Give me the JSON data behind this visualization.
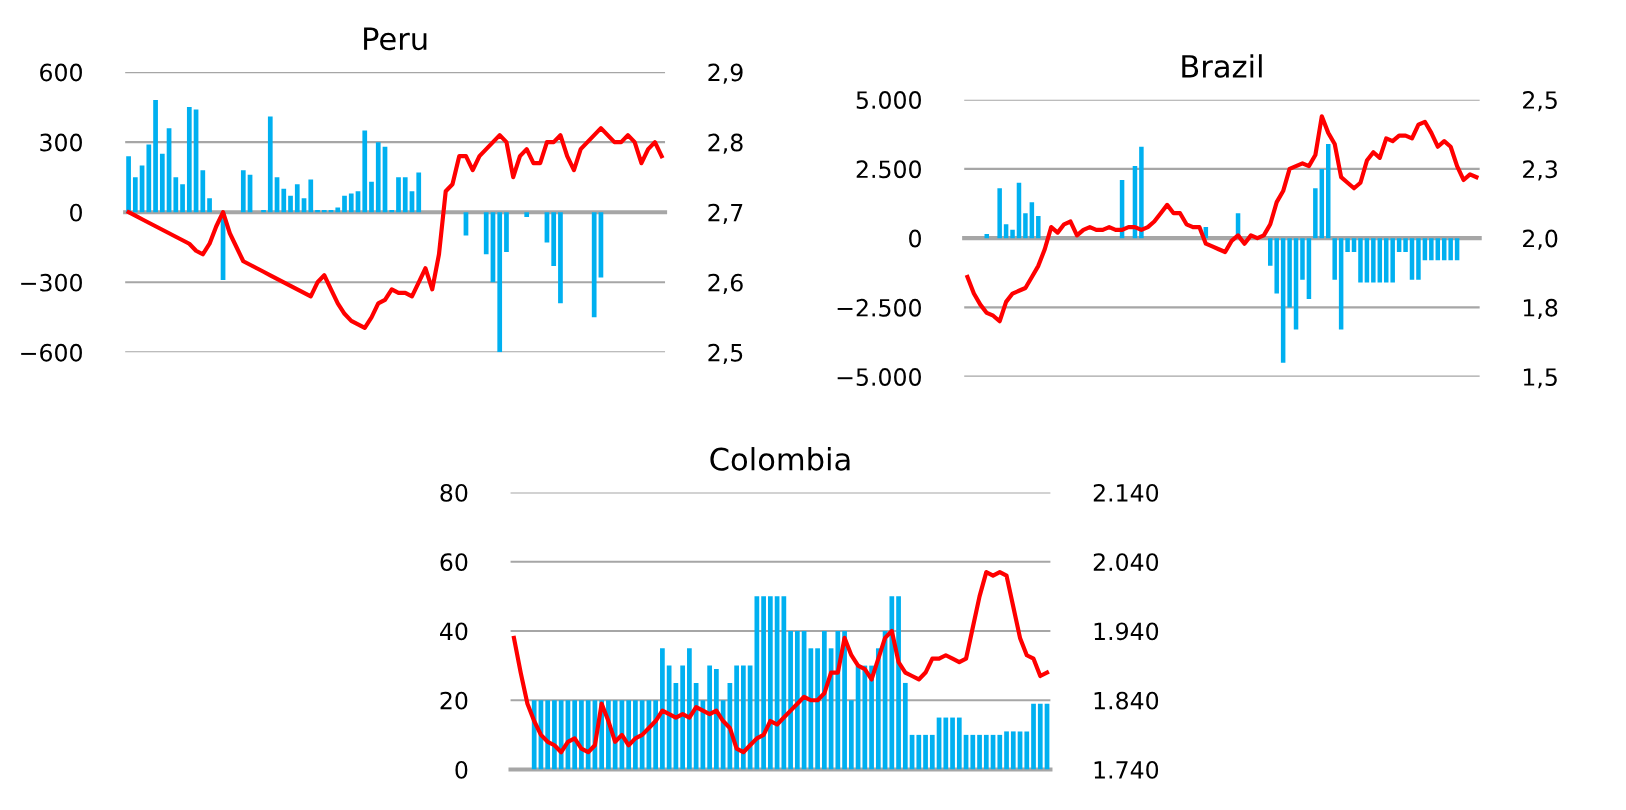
{
  "chart_data": [
    {
      "type": "bar",
      "title": "Peru",
      "grid": "y",
      "categories": [
        null,
        null,
        null,
        null,
        null,
        null,
        null,
        null,
        null,
        null,
        null,
        null,
        null,
        null,
        null,
        null,
        null,
        null,
        null,
        null,
        null,
        null,
        null,
        null,
        null,
        null,
        null,
        null,
        null,
        null,
        null,
        null,
        null,
        null,
        null,
        null,
        null,
        null,
        null,
        null,
        null,
        null,
        null,
        null,
        null,
        null,
        null,
        null,
        null,
        null,
        null,
        null,
        null,
        null,
        null,
        null,
        null,
        null,
        null,
        null,
        null,
        null,
        null,
        null,
        null,
        null,
        null,
        null,
        null,
        null,
        null,
        null,
        null,
        null,
        null,
        null,
        null,
        null,
        null,
        null
      ],
      "series": [
        {
          "color": "#00b0f0",
          "values": [
            240,
            150,
            200,
            290,
            480,
            250,
            360,
            150,
            120,
            450,
            440,
            180,
            60,
            0,
            -290,
            0,
            0,
            180,
            160,
            0,
            10,
            410,
            150,
            100,
            70,
            120,
            60,
            140,
            10,
            10,
            10,
            20,
            70,
            80,
            90,
            350,
            130,
            300,
            280,
            10,
            150,
            150,
            90,
            170,
            0,
            0,
            0,
            0,
            0,
            0,
            -100,
            0,
            0,
            -180,
            -300,
            -600,
            -170,
            0,
            0,
            -20,
            0,
            0,
            -130,
            -230,
            -390,
            0,
            0,
            0,
            0,
            -450,
            -280,
            0,
            0,
            0,
            0,
            0,
            0,
            0,
            0,
            0
          ]
        },
        {
          "type": "line",
          "axis": "y2",
          "color": "#ff0000",
          "values": [
            2.7,
            2.695,
            2.69,
            2.685,
            2.68,
            2.675,
            2.67,
            2.665,
            2.66,
            2.655,
            2.645,
            2.64,
            2.655,
            2.68,
            2.7,
            2.67,
            2.65,
            2.63,
            2.625,
            2.62,
            2.615,
            2.61,
            2.605,
            2.6,
            2.595,
            2.59,
            2.585,
            2.58,
            2.6,
            2.61,
            2.59,
            2.57,
            2.555,
            2.545,
            2.54,
            2.535,
            2.55,
            2.57,
            2.575,
            2.59,
            2.585,
            2.585,
            2.58,
            2.6,
            2.62,
            2.59,
            2.64,
            2.73,
            2.74,
            2.78,
            2.78,
            2.76,
            2.78,
            2.79,
            2.8,
            2.81,
            2.8,
            2.75,
            2.78,
            2.79,
            2.77,
            2.77,
            2.8,
            2.8,
            2.81,
            2.78,
            2.76,
            2.79,
            2.8,
            2.81,
            2.82,
            2.81,
            2.8,
            2.8,
            2.81,
            2.8,
            2.77,
            2.79,
            2.8,
            2.78
          ]
        }
      ],
      "ylim": [
        -600,
        600
      ],
      "yticks": [
        {
          "value": -600,
          "label": "−600"
        },
        {
          "value": -300,
          "label": "−300"
        },
        0,
        300,
        600
      ],
      "y2lim": [
        2.5,
        2.9
      ],
      "y2ticks": [
        {
          "value": 2.5,
          "label": "2,5"
        },
        {
          "value": 2.6,
          "label": "2,6"
        },
        {
          "value": 2.7,
          "label": "2,7"
        },
        {
          "value": 2.8,
          "label": "2,8"
        },
        {
          "value": 2.9,
          "label": "2,9"
        }
      ]
    },
    {
      "type": "bar",
      "title": "Brazil",
      "grid": "y",
      "categories": [
        null,
        null,
        null,
        null,
        null,
        null,
        null,
        null,
        null,
        null,
        null,
        null,
        null,
        null,
        null,
        null,
        null,
        null,
        null,
        null,
        null,
        null,
        null,
        null,
        null,
        null,
        null,
        null,
        null,
        null,
        null,
        null,
        null,
        null,
        null,
        null,
        null,
        null,
        null,
        null,
        null,
        null,
        null,
        null,
        null,
        null,
        null,
        null,
        null,
        null,
        null,
        null,
        null,
        null,
        null,
        null,
        null,
        null,
        null,
        null,
        null,
        null,
        null,
        null,
        null,
        null,
        null,
        null,
        null,
        null,
        null,
        null,
        null,
        null,
        null,
        null,
        null,
        null,
        null,
        null
      ],
      "series": [
        {
          "color": "#00b0f0",
          "values": [
            0,
            0,
            0,
            150,
            0,
            1800,
            500,
            300,
            2000,
            900,
            1300,
            800,
            0,
            0,
            0,
            0,
            0,
            0,
            0,
            0,
            0,
            0,
            0,
            0,
            2100,
            0,
            2600,
            3300,
            0,
            0,
            0,
            0,
            0,
            0,
            0,
            0,
            0,
            400,
            0,
            0,
            0,
            0,
            900,
            0,
            0,
            0,
            0,
            -1000,
            -2000,
            -4500,
            -2500,
            -3300,
            -1500,
            -2200,
            1800,
            2500,
            3400,
            -1500,
            -3300,
            -500,
            -500,
            -1600,
            -1600,
            -1600,
            -1600,
            -1600,
            -1600,
            -500,
            -500,
            -1500,
            -1500,
            -800,
            -800,
            -800,
            -800,
            -800,
            -800,
            0,
            0,
            0
          ]
        },
        {
          "type": "line",
          "axis": "y2",
          "color": "#ff0000",
          "values": [
            1.86,
            1.8,
            1.76,
            1.73,
            1.72,
            1.7,
            1.77,
            1.8,
            1.81,
            1.82,
            1.86,
            1.9,
            1.96,
            2.04,
            2.02,
            2.05,
            2.06,
            2.01,
            2.03,
            2.04,
            2.03,
            2.03,
            2.04,
            2.03,
            2.03,
            2.04,
            2.04,
            2.03,
            2.04,
            2.06,
            2.09,
            2.12,
            2.09,
            2.09,
            2.05,
            2.04,
            2.04,
            1.98,
            1.97,
            1.96,
            1.95,
            1.99,
            2.01,
            1.98,
            2.01,
            2.0,
            2.01,
            2.05,
            2.13,
            2.17,
            2.25,
            2.26,
            2.27,
            2.26,
            2.3,
            2.44,
            2.38,
            2.34,
            2.22,
            2.2,
            2.18,
            2.2,
            2.28,
            2.31,
            2.29,
            2.36,
            2.35,
            2.37,
            2.37,
            2.36,
            2.41,
            2.42,
            2.38,
            2.33,
            2.35,
            2.33,
            2.26,
            2.21,
            2.23,
            2.22
          ]
        }
      ],
      "ylim": [
        -5000,
        5000
      ],
      "yticks": [
        {
          "value": -5000,
          "label": "−5.000"
        },
        {
          "value": -2500,
          "label": "−2.500"
        },
        0,
        {
          "value": 2500,
          "label": "2.500"
        },
        {
          "value": 5000,
          "label": "5.000"
        }
      ],
      "y2lim": [
        1.5,
        2.5
      ],
      "y2ticks": [
        {
          "value": 1.5,
          "label": "1,5"
        },
        {
          "value": 1.75,
          "label": "1,8"
        },
        {
          "value": 2.0,
          "label": "2,0"
        },
        {
          "value": 2.25,
          "label": "2,3"
        },
        {
          "value": 2.5,
          "label": "2,5"
        }
      ]
    },
    {
      "type": "bar",
      "title": "Colombia",
      "grid": "y",
      "categories": [
        null,
        null,
        null,
        null,
        null,
        null,
        null,
        null,
        null,
        null,
        null,
        null,
        null,
        null,
        null,
        null,
        null,
        null,
        null,
        null,
        null,
        null,
        null,
        null,
        null,
        null,
        null,
        null,
        null,
        null,
        null,
        null,
        null,
        null,
        null,
        null,
        null,
        null,
        null,
        null,
        null,
        null,
        null,
        null,
        null,
        null,
        null,
        null,
        null,
        null,
        null,
        null,
        null,
        null,
        null,
        null,
        null,
        null,
        null,
        null,
        null,
        null,
        null,
        null,
        null,
        null,
        null,
        null,
        null,
        null,
        null,
        null,
        null,
        null,
        null,
        null,
        null,
        null,
        null,
        null
      ],
      "series": [
        {
          "color": "#00b0f0",
          "values": [
            0,
            0,
            0,
            20,
            20,
            20,
            20,
            20,
            20,
            20,
            20,
            20,
            20,
            20,
            20,
            20,
            20,
            20,
            20,
            20,
            20,
            20,
            35,
            30,
            25,
            30,
            35,
            25,
            20,
            30,
            29,
            20,
            25,
            30,
            30,
            30,
            50,
            50,
            50,
            50,
            50,
            40,
            40,
            40,
            35,
            35,
            40,
            35,
            40,
            40,
            20,
            30,
            30,
            30,
            35,
            40,
            50,
            50,
            25,
            10,
            10,
            10,
            10,
            15,
            15,
            15,
            15,
            10,
            10,
            10,
            10,
            10,
            10,
            11,
            11,
            11,
            11,
            19,
            19,
            19
          ]
        },
        {
          "type": "line",
          "axis": "y2",
          "color": "#ff0000",
          "values": [
            1930,
            1880,
            1835,
            1810,
            1790,
            1780,
            1775,
            1765,
            1780,
            1785,
            1770,
            1765,
            1775,
            1835,
            1810,
            1780,
            1790,
            1775,
            1785,
            1790,
            1800,
            1810,
            1825,
            1820,
            1815,
            1820,
            1815,
            1830,
            1825,
            1820,
            1825,
            1810,
            1800,
            1770,
            1765,
            1775,
            1785,
            1790,
            1810,
            1805,
            1815,
            1825,
            1835,
            1845,
            1840,
            1840,
            1850,
            1880,
            1880,
            1930,
            1905,
            1890,
            1885,
            1870,
            1900,
            1930,
            1940,
            1895,
            1880,
            1875,
            1870,
            1880,
            1900,
            1900,
            1905,
            1900,
            1895,
            1900,
            1945,
            1990,
            2025,
            2020,
            2025,
            2020,
            1975,
            1930,
            1905,
            1900,
            1875,
            1880
          ]
        }
      ],
      "ylim": [
        0,
        80
      ],
      "yticks": [
        0,
        20,
        40,
        60,
        80
      ],
      "y2lim": [
        1740,
        2140
      ],
      "y2ticks": [
        {
          "value": 1740,
          "label": "1.740"
        },
        {
          "value": 1840,
          "label": "1.840"
        },
        {
          "value": 1940,
          "label": "1.940"
        },
        {
          "value": 2040,
          "label": "2.040"
        },
        {
          "value": 2140,
          "label": "2.140"
        }
      ]
    }
  ]
}
